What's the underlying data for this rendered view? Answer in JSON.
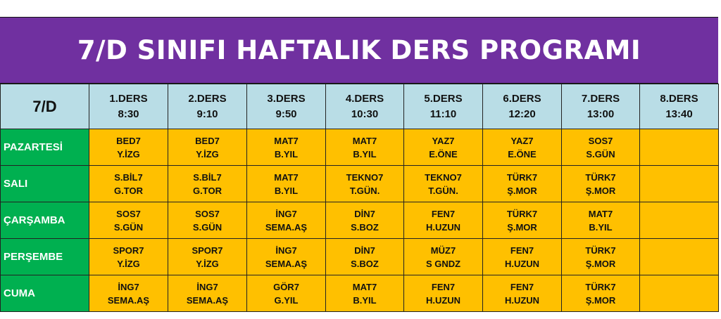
{
  "title": "7/D SINIFI HAFTALIK DERS PROGRAMI",
  "class_label": "7/D",
  "periods": [
    {
      "name": "1.DERS",
      "time": "8:30"
    },
    {
      "name": "2.DERS",
      "time": "9:10"
    },
    {
      "name": "3.DERS",
      "time": "9:50"
    },
    {
      "name": "4.DERS",
      "time": "10:30"
    },
    {
      "name": "5.DERS",
      "time": "11:10"
    },
    {
      "name": "6.DERS",
      "time": "12:20"
    },
    {
      "name": "7.DERS",
      "time": "13:00"
    },
    {
      "name": "8.DERS",
      "time": "13:40"
    }
  ],
  "days": [
    {
      "name": "PAZARTESİ",
      "lessons": [
        {
          "course": "BED7",
          "teacher": "Y.İZG"
        },
        {
          "course": "BED7",
          "teacher": "Y.İZG"
        },
        {
          "course": "MAT7",
          "teacher": "B.YIL"
        },
        {
          "course": "MAT7",
          "teacher": "B.YIL"
        },
        {
          "course": "YAZ7",
          "teacher": "E.ÖNE"
        },
        {
          "course": "YAZ7",
          "teacher": "E.ÖNE"
        },
        {
          "course": "SOS7",
          "teacher": "S.GÜN"
        },
        {
          "course": "",
          "teacher": ""
        }
      ]
    },
    {
      "name": "SALI",
      "lessons": [
        {
          "course": "S.BİL7",
          "teacher": "G.TOR"
        },
        {
          "course": "S.BİL7",
          "teacher": "G.TOR"
        },
        {
          "course": "MAT7",
          "teacher": "B.YIL"
        },
        {
          "course": "TEKNO7",
          "teacher": "T.GÜN."
        },
        {
          "course": "TEKNO7",
          "teacher": "T.GÜN."
        },
        {
          "course": "TÜRK7",
          "teacher": "Ş.MOR"
        },
        {
          "course": "TÜRK7",
          "teacher": "Ş.MOR"
        },
        {
          "course": "",
          "teacher": ""
        }
      ]
    },
    {
      "name": "ÇARŞAMBA",
      "lessons": [
        {
          "course": "SOS7",
          "teacher": "S.GÜN"
        },
        {
          "course": "SOS7",
          "teacher": "S.GÜN"
        },
        {
          "course": "İNG7",
          "teacher": "SEMA.AŞ"
        },
        {
          "course": "DİN7",
          "teacher": "S.BOZ"
        },
        {
          "course": "FEN7",
          "teacher": "H.UZUN"
        },
        {
          "course": "TÜRK7",
          "teacher": "Ş.MOR"
        },
        {
          "course": "MAT7",
          "teacher": "B.YIL"
        },
        {
          "course": "",
          "teacher": ""
        }
      ]
    },
    {
      "name": "PERŞEMBE",
      "lessons": [
        {
          "course": "SPOR7",
          "teacher": "Y.İZG"
        },
        {
          "course": "SPOR7",
          "teacher": "Y.İZG"
        },
        {
          "course": "İNG7",
          "teacher": "SEMA.AŞ"
        },
        {
          "course": "DİN7",
          "teacher": "S.BOZ"
        },
        {
          "course": "MÜZ7",
          "teacher": "S GNDZ"
        },
        {
          "course": "FEN7",
          "teacher": "H.UZUN"
        },
        {
          "course": "TÜRK7",
          "teacher": "Ş.MOR"
        },
        {
          "course": "",
          "teacher": ""
        }
      ]
    },
    {
      "name": "CUMA",
      "lessons": [
        {
          "course": "İNG7",
          "teacher": "SEMA.AŞ"
        },
        {
          "course": "İNG7",
          "teacher": "SEMA.AŞ"
        },
        {
          "course": "GÖR7",
          "teacher": "G.YIL"
        },
        {
          "course": "MAT7",
          "teacher": "B.YIL"
        },
        {
          "course": "FEN7",
          "teacher": "H.UZUN"
        },
        {
          "course": "FEN7",
          "teacher": "H.UZUN"
        },
        {
          "course": "TÜRK7",
          "teacher": "Ş.MOR"
        },
        {
          "course": "",
          "teacher": ""
        }
      ]
    }
  ],
  "colors": {
    "title_bg": "#7030a0",
    "header_bg": "#b9dde6",
    "day_bg": "#00b050",
    "lesson_bg": "#ffc000"
  }
}
